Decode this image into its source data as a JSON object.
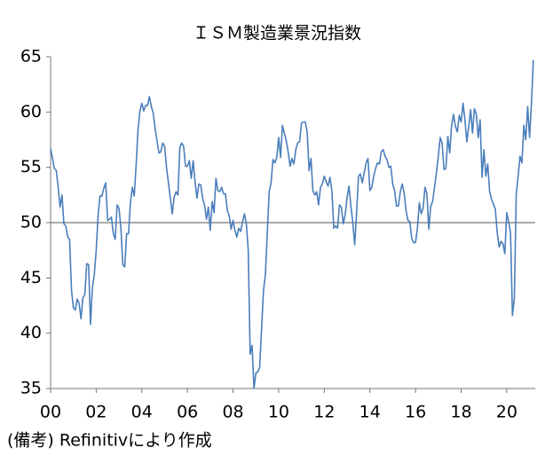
{
  "chart_data": {
    "type": "line",
    "title": "ＩＳＭ製造業景況指数",
    "note": "(備考) Refinitivにより作成",
    "series": [
      {
        "name": "ISM",
        "color": "#4a7ebb",
        "values": [
          56.7,
          55.8,
          54.9,
          54.7,
          53.2,
          51.4,
          52.5,
          49.9,
          49.7,
          48.7,
          48.5,
          43.9,
          42.3,
          42.1,
          43.1,
          42.7,
          41.3,
          43.2,
          43.5,
          46.3,
          46.2,
          40.8,
          44.1,
          45.3,
          47.5,
          50.7,
          52.4,
          52.4,
          53.1,
          53.6,
          50.2,
          50.3,
          50.5,
          49.0,
          48.5,
          51.6,
          51.3,
          49.5,
          46.2,
          46.0,
          49.0,
          49.0,
          51.8,
          53.2,
          52.4,
          55.2,
          58.4,
          60.1,
          60.8,
          60.1,
          60.6,
          60.6,
          61.4,
          60.5,
          59.9,
          58.5,
          57.4,
          56.3,
          56.4,
          57.2,
          56.9,
          55.0,
          53.6,
          52.2,
          50.8,
          52.3,
          52.8,
          52.5,
          56.8,
          57.2,
          56.9,
          55.1,
          55.1,
          55.6,
          54.0,
          55.6,
          53.7,
          52.2,
          53.5,
          53.4,
          52.2,
          51.6,
          50.3,
          51.4,
          49.3,
          51.9,
          50.9,
          54.0,
          52.9,
          52.8,
          53.2,
          52.6,
          52.6,
          51.1,
          50.6,
          49.4,
          50.2,
          49.3,
          48.7,
          49.5,
          49.2,
          50.1,
          50.8,
          49.9,
          47.5,
          38.1,
          38.9,
          35.0,
          36.4,
          36.5,
          36.9,
          40.4,
          43.8,
          45.3,
          49.0,
          52.8,
          53.6,
          55.7,
          55.4,
          55.9,
          57.7,
          55.9,
          58.8,
          58.1,
          57.4,
          56.4,
          55.1,
          55.8,
          55.3,
          56.6,
          57.2,
          57.3,
          59.0,
          59.1,
          59.1,
          58.2,
          54.7,
          55.8,
          52.9,
          52.5,
          52.8,
          51.6,
          53.2,
          53.5,
          54.2,
          53.7,
          53.3,
          54.1,
          52.9,
          49.5,
          49.7,
          49.5,
          51.6,
          51.4,
          49.9,
          50.7,
          52.3,
          53.3,
          51.5,
          50.0,
          48.0,
          50.9,
          54.2,
          54.4,
          53.6,
          54.5,
          55.4,
          55.8,
          52.9,
          53.2,
          54.2,
          54.9,
          55.4,
          55.3,
          56.4,
          56.6,
          56.0,
          55.7,
          55.0,
          55.1,
          53.5,
          52.9,
          51.5,
          51.5,
          52.8,
          53.5,
          52.7,
          51.1,
          50.2,
          50.1,
          48.6,
          48.2,
          48.2,
          49.5,
          51.8,
          50.8,
          51.3,
          53.2,
          52.6,
          49.4,
          51.5,
          51.9,
          53.2,
          54.5,
          56.0,
          57.7,
          57.2,
          54.8,
          54.9,
          57.8,
          56.3,
          58.8,
          59.8,
          58.7,
          58.2,
          59.7,
          59.1,
          60.8,
          59.3,
          57.3,
          58.7,
          60.2,
          58.1,
          60.3,
          59.8,
          57.7,
          59.3,
          54.1,
          56.6,
          54.2,
          55.3,
          52.8,
          52.1,
          51.7,
          51.2,
          49.1,
          47.8,
          48.3,
          48.1,
          47.2,
          50.9,
          50.1,
          49.1,
          41.6,
          43.1,
          52.6,
          54.2,
          56.0,
          55.4,
          58.8,
          57.5,
          60.5,
          57.7,
          60.8,
          64.7
        ]
      }
    ],
    "xlim": [
      0,
      255
    ],
    "xticks": [
      {
        "value": 0,
        "label": "00"
      },
      {
        "value": 24,
        "label": "02"
      },
      {
        "value": 48,
        "label": "04"
      },
      {
        "value": 72,
        "label": "06"
      },
      {
        "value": 96,
        "label": "08"
      },
      {
        "value": 120,
        "label": "10"
      },
      {
        "value": 144,
        "label": "12"
      },
      {
        "value": 168,
        "label": "14"
      },
      {
        "value": 192,
        "label": "16"
      },
      {
        "value": 216,
        "label": "18"
      },
      {
        "value": 240,
        "label": "20"
      }
    ],
    "ylim": [
      35,
      65
    ],
    "yticks": [
      35,
      40,
      45,
      50,
      55,
      60,
      65
    ],
    "reference_line": 50
  }
}
